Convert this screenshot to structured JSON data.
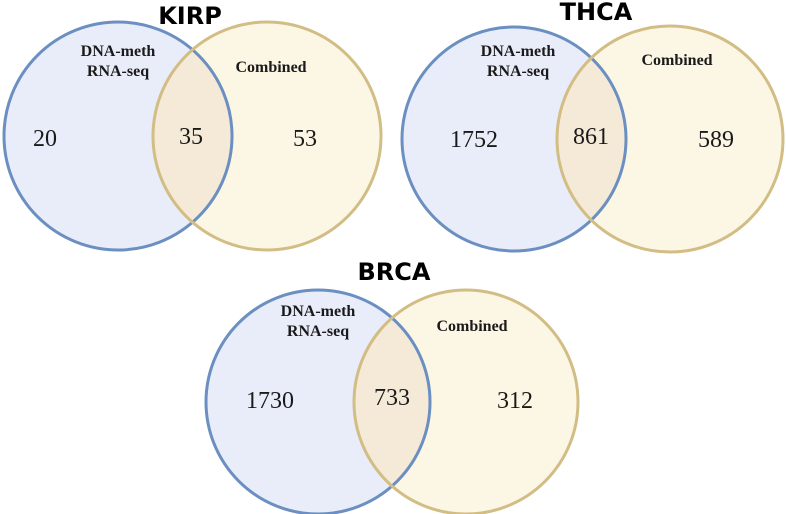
{
  "colors": {
    "circle_a_fill": "#e8edf9",
    "circle_a_stroke": "#6a8fc0",
    "circle_b_fill": "#fcf6e4",
    "circle_b_stroke": "#d2bd84",
    "overlap_fill": "#f5ead8"
  },
  "diagrams": [
    {
      "title": "KIRP",
      "set_a_label_line1": "DNA-meth",
      "set_a_label_line2": "RNA-seq",
      "set_b_label": "Combined",
      "only_a": "20",
      "both": "35",
      "only_b": "53"
    },
    {
      "title": "THCA",
      "set_a_label_line1": "DNA-meth",
      "set_a_label_line2": "RNA-seq",
      "set_b_label": "Combined",
      "only_a": "1752",
      "both": "861",
      "only_b": "589"
    },
    {
      "title": "BRCA",
      "set_a_label_line1": "DNA-meth",
      "set_a_label_line2": "RNA-seq",
      "set_b_label": "Combined",
      "only_a": "1730",
      "both": "733",
      "only_b": "312"
    }
  ]
}
